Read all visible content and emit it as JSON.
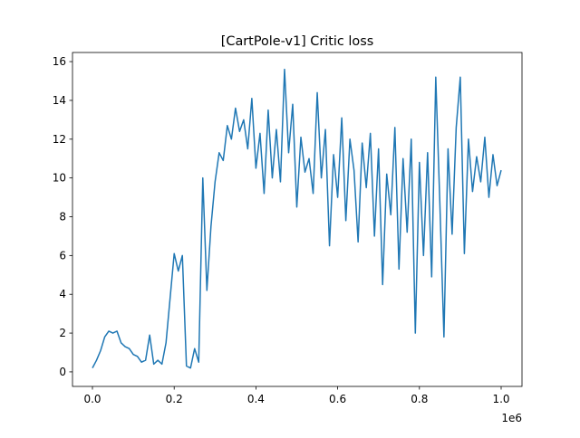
{
  "chart_data": {
    "type": "line",
    "title": "[CartPole-v1] Critic loss",
    "x": [
      0,
      10000,
      20000,
      30000,
      40000,
      50000,
      60000,
      70000,
      80000,
      90000,
      100000,
      110000,
      120000,
      130000,
      140000,
      150000,
      160000,
      170000,
      180000,
      190000,
      200000,
      210000,
      220000,
      230000,
      240000,
      250000,
      260000,
      270000,
      280000,
      290000,
      300000,
      310000,
      320000,
      330000,
      340000,
      350000,
      360000,
      370000,
      380000,
      390000,
      400000,
      410000,
      420000,
      430000,
      440000,
      450000,
      460000,
      470000,
      480000,
      490000,
      500000,
      510000,
      520000,
      530000,
      540000,
      550000,
      560000,
      570000,
      580000,
      590000,
      600000,
      610000,
      620000,
      630000,
      640000,
      650000,
      660000,
      670000,
      680000,
      690000,
      700000,
      710000,
      720000,
      730000,
      740000,
      750000,
      760000,
      770000,
      780000,
      790000,
      800000,
      810000,
      820000,
      830000,
      840000,
      850000,
      860000,
      870000,
      880000,
      890000,
      900000,
      910000,
      920000,
      930000,
      940000,
      950000,
      960000,
      970000,
      980000,
      990000,
      1000000
    ],
    "series": [
      {
        "color": "#1f77b4",
        "values": [
          0.2,
          0.6,
          1.1,
          1.8,
          2.1,
          2.0,
          2.1,
          1.5,
          1.3,
          1.2,
          0.9,
          0.8,
          0.5,
          0.6,
          1.9,
          0.4,
          0.6,
          0.4,
          1.5,
          3.8,
          6.1,
          5.2,
          6.0,
          0.3,
          0.2,
          1.2,
          0.5,
          10.0,
          4.2,
          7.5,
          9.8,
          11.3,
          10.9,
          12.7,
          12.0,
          13.6,
          12.4,
          13.0,
          11.5,
          14.1,
          10.5,
          12.3,
          9.2,
          13.5,
          10.0,
          12.5,
          9.8,
          15.6,
          11.3,
          13.8,
          8.5,
          12.1,
          10.3,
          11.0,
          9.2,
          14.4,
          10.0,
          12.5,
          6.5,
          11.2,
          9.0,
          13.1,
          7.8,
          12.0,
          10.4,
          6.7,
          11.8,
          9.5,
          12.3,
          7.0,
          11.5,
          4.5,
          10.2,
          8.1,
          12.6,
          5.3,
          11.0,
          7.2,
          12.0,
          2.0,
          10.8,
          6.0,
          11.3,
          4.9,
          15.2,
          8.7,
          1.8,
          11.5,
          7.1,
          12.6,
          15.2,
          6.1,
          12.0,
          9.3,
          11.1,
          9.8,
          12.1,
          9.0,
          11.2,
          9.6,
          10.4
        ]
      }
    ],
    "xlim": [
      -48800,
      1051000
    ],
    "ylim": [
      -0.75,
      16.47
    ],
    "xticks": [
      {
        "value": 0,
        "label": "0.0"
      },
      {
        "value": 200000,
        "label": "0.2"
      },
      {
        "value": 400000,
        "label": "0.4"
      },
      {
        "value": 600000,
        "label": "0.6"
      },
      {
        "value": 800000,
        "label": "0.8"
      },
      {
        "value": 1000000,
        "label": "1.0"
      }
    ],
    "yticks": [
      0,
      2,
      4,
      6,
      8,
      10,
      12,
      14,
      16
    ],
    "x_offset_label": "1e6"
  }
}
